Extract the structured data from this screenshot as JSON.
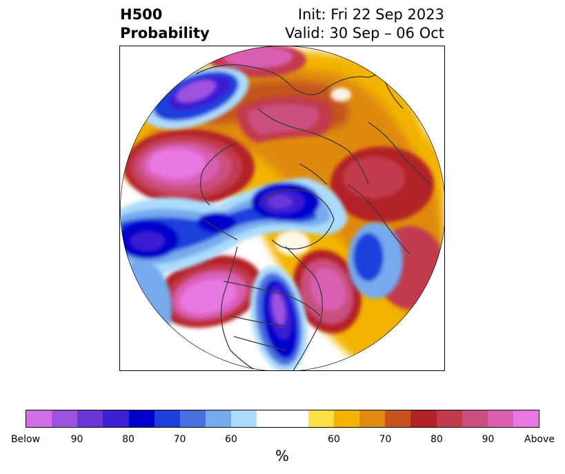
{
  "title": {
    "left_line1": "H500",
    "left_line2": "Probability",
    "right_line1": "Init: Fri 22 Sep 2023",
    "right_line2": "Valid: 30 Sep – 06 Oct"
  },
  "map": {
    "projection": "north-polar-stereographic",
    "features": [
      "coastlines",
      "country-borders",
      "state-borders"
    ]
  },
  "colorbar": {
    "unit": "%",
    "colors": [
      "#d36fe6",
      "#9e52e0",
      "#6a37d6",
      "#3a1fd3",
      "#0000cc",
      "#1f3fdb",
      "#4a6fe3",
      "#75abee",
      "#acdcfb",
      "#ffffff",
      "#ffffff",
      "#fde047",
      "#f2b400",
      "#e08a10",
      "#c4521a",
      "#b22227",
      "#c23b4d",
      "#cb4f7e",
      "#d95fb3",
      "#e877e1"
    ],
    "tick_labels": [
      "Below",
      "90",
      "80",
      "70",
      "60",
      "60",
      "70",
      "80",
      "90",
      "Above"
    ]
  }
}
